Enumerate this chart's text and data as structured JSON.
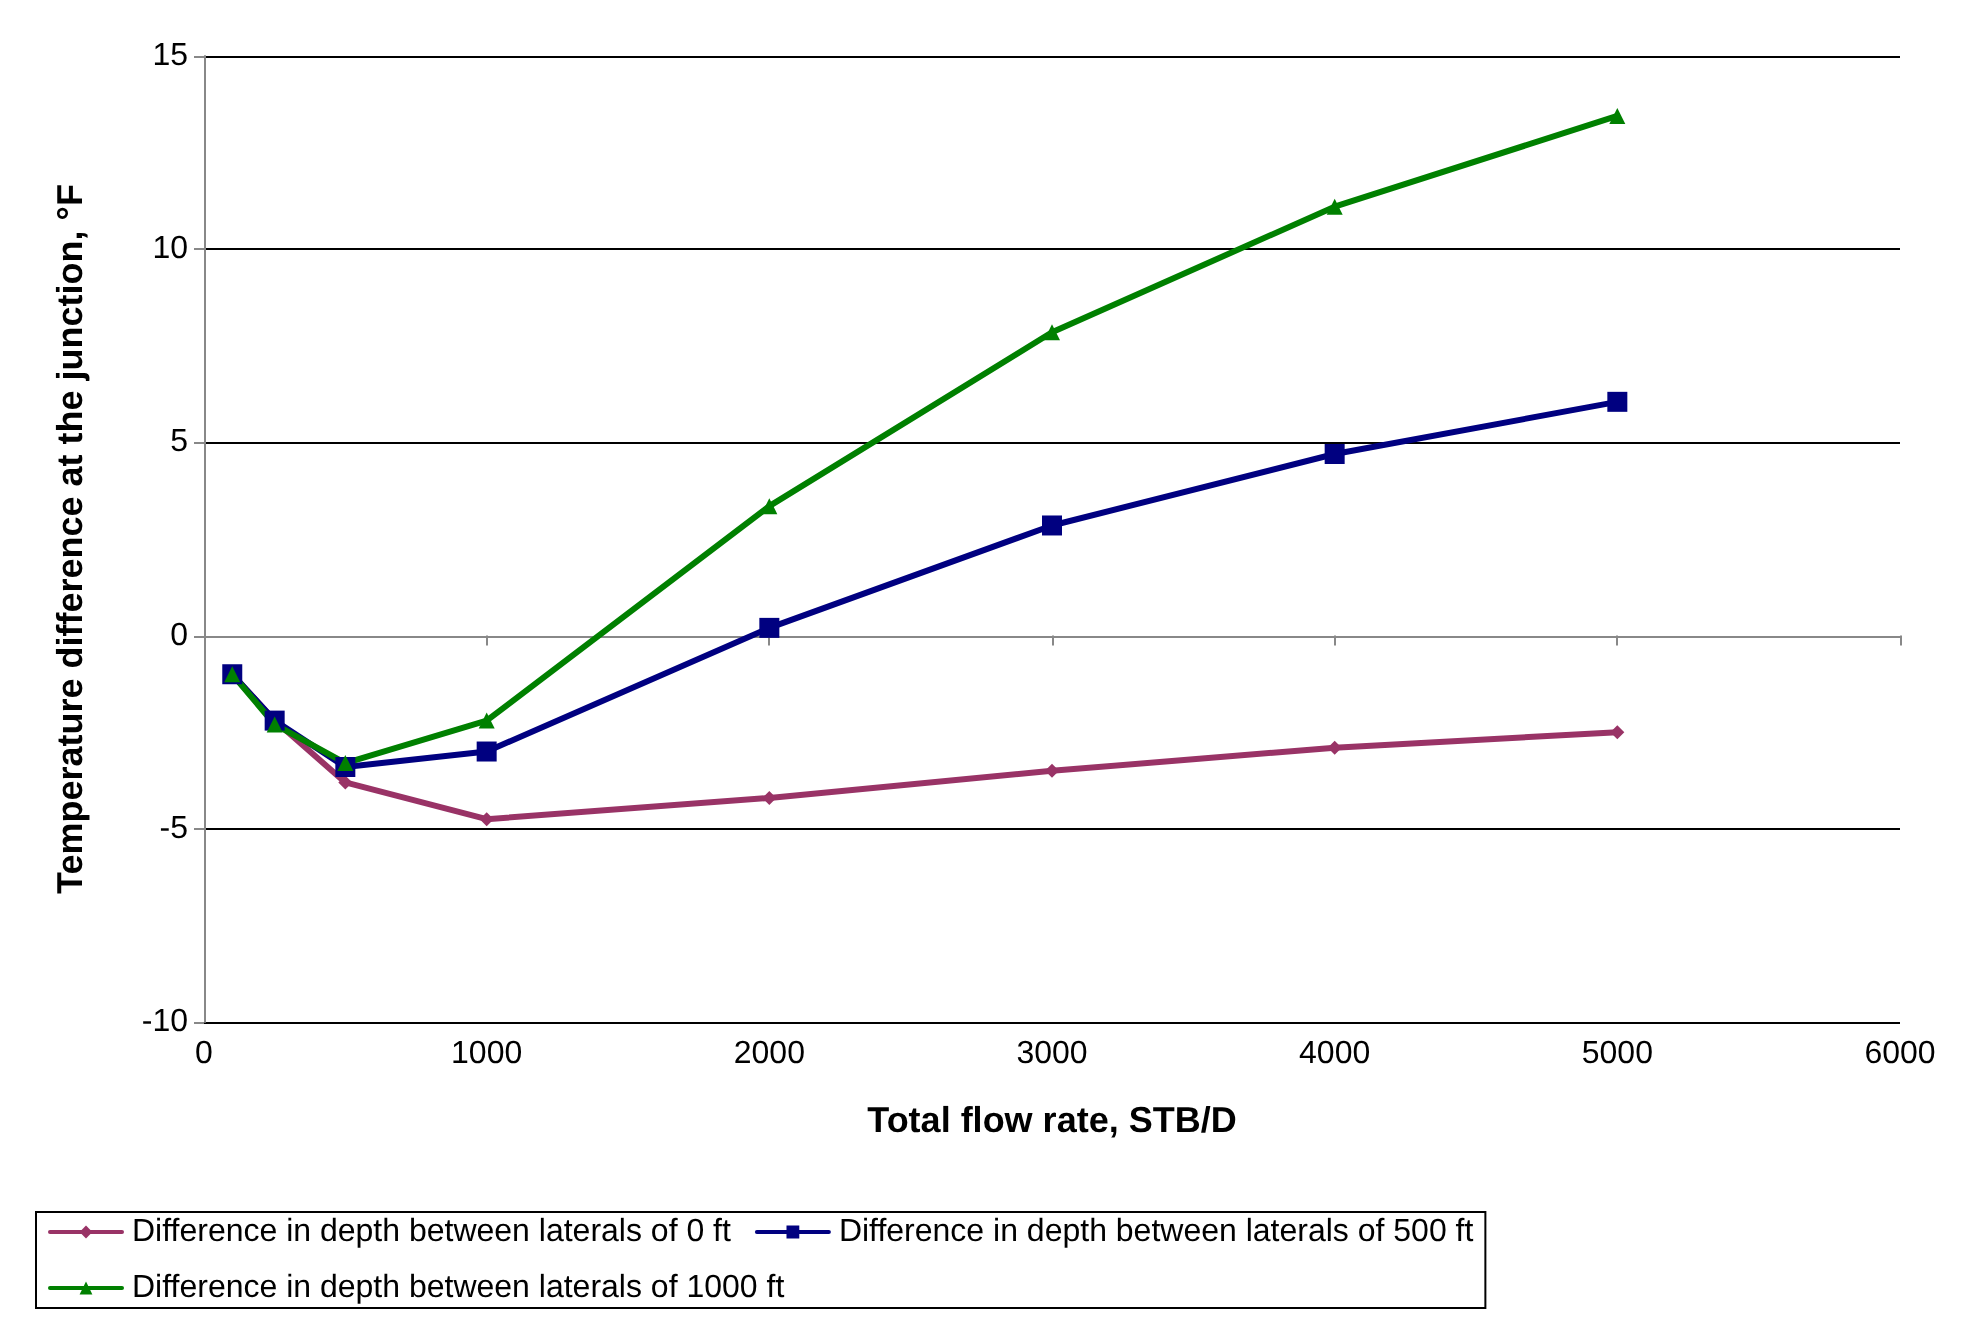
{
  "chart_data": {
    "type": "line",
    "xlabel": "Total flow rate, STB/D",
    "ylabel": "Temperature difference at the junction, °F",
    "x": [
      100,
      250,
      500,
      1000,
      2000,
      3000,
      4000,
      5000
    ],
    "series": [
      {
        "name": "Difference in depth between laterals of 0 ft",
        "color": "#993366",
        "marker": "diamond",
        "values": [
          -1.0,
          -2.2,
          -3.8,
          -4.75,
          -4.2,
          -3.5,
          -2.9,
          -2.5
        ]
      },
      {
        "name": "Difference in depth between laterals of 500 ft",
        "color": "#000080",
        "marker": "square",
        "values": [
          -1.0,
          -2.2,
          -3.4,
          -3.0,
          0.2,
          2.85,
          4.7,
          6.05
        ]
      },
      {
        "name": "Difference in depth between laterals of 1000 ft",
        "color": "#008000",
        "marker": "triangle",
        "values": [
          -1.0,
          -2.3,
          -3.3,
          -2.2,
          3.35,
          7.85,
          11.1,
          13.45
        ]
      }
    ],
    "xlim": [
      0,
      6000
    ],
    "xticks": [
      0,
      1000,
      2000,
      3000,
      4000,
      5000,
      6000
    ],
    "ylim": [
      -10,
      15
    ],
    "yticks": [
      -10,
      -5,
      0,
      5,
      10,
      15
    ],
    "grid": "y",
    "legend": "bottom",
    "line_style": "solid"
  }
}
